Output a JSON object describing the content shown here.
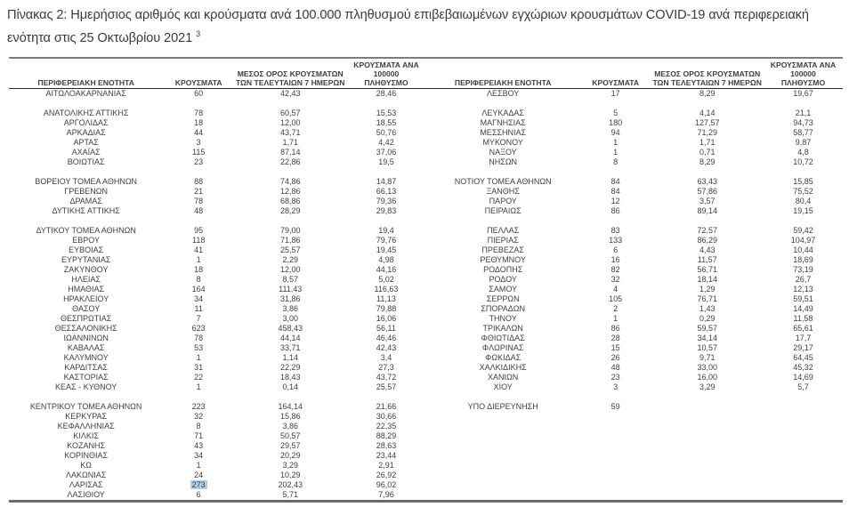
{
  "document": {
    "title_line1": "Πίνακας 2: Ημερήσιος αριθμός και κρούσματα ανά 100.000 πληθυσμού επιβεβαιωμένων εγχώριων κρουσμάτων COVID-19 ανά περιφερειακή",
    "title_line2": "ενότητα στις 25 Οκτωβρίου 2021",
    "title_footnote_marker": "3"
  },
  "table": {
    "column_headers": [
      [
        "ΠΕΡΙΦΕΡΕΙΑΚΗ ΕΝΟΤΗΤΑ"
      ],
      [
        "ΚΡΟΥΣΜΑΤΑ"
      ],
      [
        "ΜΕΣΟΣ ΟΡΟΣ ΚΡΟΥΣΜΑΤΩΝ",
        "ΤΩΝ ΤΕΛΕΥΤΑΙΩΝ 7 ΗΜΕΡΩΝ"
      ],
      [
        "ΚΡΟΥΣΜΑΤΑ ΑΝΑ 100000",
        "ΠΛΗΘΥΣΜΟ"
      ]
    ],
    "left_rows": [
      [
        "ΑΙΤΩΛΟΑΚΑΡΝΑΝΙΑΣ",
        "60",
        "42,43",
        "28,46"
      ],
      null,
      [
        "ΑΝΑΤΟΛΙΚΗΣ ΑΤΤΙΚΗΣ",
        "78",
        "60,57",
        "15,53"
      ],
      [
        "ΑΡΓΟΛΙΔΑΣ",
        "18",
        "12,00",
        "18,55"
      ],
      [
        "ΑΡΚΑΔΙΑΣ",
        "44",
        "43,71",
        "50,76"
      ],
      [
        "ΑΡΤΑΣ",
        "3",
        "1,71",
        "4,42"
      ],
      [
        "ΑΧΑΪΑΣ",
        "115",
        "87,14",
        "37,06"
      ],
      [
        "ΒΟΙΩΤΙΑΣ",
        "23",
        "22,86",
        "19,5"
      ],
      null,
      [
        "ΒΟΡΕΙΟΥ ΤΟΜΕΑ ΑΘΗΝΩΝ",
        "88",
        "74,86",
        "14,87"
      ],
      [
        "ΓΡΕΒΕΝΩΝ",
        "21",
        "12,86",
        "66,13"
      ],
      [
        "ΔΡΑΜΑΣ",
        "78",
        "68,86",
        "79,36"
      ],
      [
        "ΔΥΤΙΚΗΣ ΑΤΤΙΚΗΣ",
        "48",
        "28,29",
        "29,83"
      ],
      null,
      [
        "ΔΥΤΙΚΟΥ ΤΟΜΕΑ ΑΘΗΝΩΝ",
        "95",
        "79,00",
        "19,4"
      ],
      [
        "ΕΒΡΟΥ",
        "118",
        "71,86",
        "79,76"
      ],
      [
        "ΕΥΒΟΙΑΣ",
        "41",
        "25,57",
        "19,45"
      ],
      [
        "ΕΥΡΥΤΑΝΙΑΣ",
        "1",
        "2,29",
        "4,98"
      ],
      [
        "ΖΑΚΥΝΘΟΥ",
        "18",
        "12,00",
        "44,16"
      ],
      [
        "ΗΛΕΙΑΣ",
        "8",
        "8,57",
        "5,02"
      ],
      [
        "ΗΜΑΘΙΑΣ",
        "164",
        "111,43",
        "116,63"
      ],
      [
        "ΗΡΑΚΛΕΙΟΥ",
        "34",
        "31,86",
        "11,13"
      ],
      [
        "ΘΑΣΟΥ",
        "11",
        "3,86",
        "79,88"
      ],
      [
        "ΘΕΣΠΡΩΤΙΑΣ",
        "7",
        "3,00",
        "16,06"
      ],
      [
        "ΘΕΣΣΑΛΟΝΙΚΗΣ",
        "623",
        "458,43",
        "56,11"
      ],
      [
        "ΙΩΑΝΝΙΝΩΝ",
        "78",
        "44,14",
        "46,46"
      ],
      [
        "ΚΑΒΑΛΑΣ",
        "53",
        "33,71",
        "42,43"
      ],
      [
        "ΚΑΛΥΜΝΟΥ",
        "1",
        "1,14",
        "3,4"
      ],
      [
        "ΚΑΡΔΙΤΣΑΣ",
        "31",
        "22,29",
        "27,3"
      ],
      [
        "ΚΑΣΤΟΡΙΑΣ",
        "22",
        "18,43",
        "43,72"
      ],
      [
        "ΚΕΑΣ - ΚΥΘΝΟΥ",
        "1",
        "0,14",
        "25,57"
      ],
      null,
      [
        "ΚΕΝΤΡΙΚΟΥ ΤΟΜΕΑ ΑΘΗΝΩΝ",
        "223",
        "164,14",
        "21,66"
      ],
      [
        "ΚΕΡΚΥΡΑΣ",
        "32",
        "15,86",
        "30,66"
      ],
      [
        "ΚΕΦΑΛΛΗΝΙΑΣ",
        "8",
        "3,86",
        "22,35"
      ],
      [
        "ΚΙΛΚΙΣ",
        "71",
        "50,57",
        "88,29"
      ],
      [
        "ΚΟΖΑΝΗΣ",
        "43",
        "29,57",
        "28,63"
      ],
      [
        "ΚΟΡΙΝΘΙΑΣ",
        "34",
        "20,29",
        "23,44"
      ],
      [
        "ΚΩ",
        "1",
        "3,29",
        "2,91"
      ],
      [
        "ΛΑΚΩΝΙΑΣ",
        "24",
        "10,29",
        "26,92"
      ],
      [
        "ΛΑΡΙΣΑΣ",
        "273",
        "202,43",
        "96,02"
      ],
      [
        "ΛΑΣΙΘΙΟΥ",
        "6",
        "5,71",
        "7,96"
      ]
    ],
    "right_rows": [
      [
        "ΛΕΣΒΟΥ",
        "17",
        "8,29",
        "19,67"
      ],
      null,
      [
        "ΛΕΥΚΑΔΑΣ",
        "5",
        "4,14",
        "21,1"
      ],
      [
        "ΜΑΓΝΗΣΙΑΣ",
        "180",
        "127,57",
        "94,73"
      ],
      [
        "ΜΕΣΣΗΝΙΑΣ",
        "94",
        "71,29",
        "58,77"
      ],
      [
        "ΜΥΚΟΝΟΥ",
        "1",
        "1,71",
        "9,87"
      ],
      [
        "ΝΑΞΟΥ",
        "1",
        "0,71",
        "4,8"
      ],
      [
        "ΝΗΣΩΝ",
        "8",
        "8,29",
        "10,72"
      ],
      null,
      [
        "ΝΟΤΙΟΥ ΤΟΜΕΑ ΑΘΗΝΩΝ",
        "84",
        "63,43",
        "15,85"
      ],
      [
        "ΞΑΝΘΗΣ",
        "84",
        "57,86",
        "75,52"
      ],
      [
        "ΠΑΡΟΥ",
        "12",
        "3,57",
        "80,4"
      ],
      [
        "ΠΕΙΡΑΙΩΣ",
        "86",
        "89,14",
        "19,15"
      ],
      null,
      [
        "ΠΕΛΛΑΣ",
        "83",
        "72,57",
        "59,42"
      ],
      [
        "ΠΙΕΡΙΑΣ",
        "133",
        "86,29",
        "104,97"
      ],
      [
        "ΠΡΕΒΕΖΑΣ",
        "6",
        "4,43",
        "10,44"
      ],
      [
        "ΡΕΘΥΜΝΟΥ",
        "16",
        "11,57",
        "18,69"
      ],
      [
        "ΡΟΔΟΠΗΣ",
        "82",
        "56,71",
        "73,19"
      ],
      [
        "ΡΟΔΟΥ",
        "32",
        "18,14",
        "26,7"
      ],
      [
        "ΣΑΜΟΥ",
        "4",
        "1,29",
        "12,13"
      ],
      [
        "ΣΕΡΡΩΝ",
        "105",
        "76,71",
        "59,51"
      ],
      [
        "ΣΠΟΡΑΔΩΝ",
        "2",
        "1,43",
        "14,49"
      ],
      [
        "ΤΗΝΟΥ",
        "1",
        "0,29",
        "11,58"
      ],
      [
        "ΤΡΙΚΑΛΩΝ",
        "86",
        "59,57",
        "65,61"
      ],
      [
        "ΦΘΙΩΤΙΔΑΣ",
        "28",
        "34,14",
        "17,7"
      ],
      [
        "ΦΛΩΡΙΝΑΣ",
        "15",
        "10,57",
        "29,17"
      ],
      [
        "ΦΩΚΙΔΑΣ",
        "26",
        "9,71",
        "64,45"
      ],
      [
        "ΧΑΛΚΙΔΙΚΗΣ",
        "48",
        "33,00",
        "45,32"
      ],
      [
        "ΧΑΝΙΩΝ",
        "23",
        "16,00",
        "14,69"
      ],
      [
        "ΧΙΟΥ",
        "3",
        "3,29",
        "5,7"
      ],
      null,
      [
        "ΥΠΟ ΔΙΕΡΕΥΝΗΣΗ",
        "59",
        "",
        ""
      ],
      null,
      null,
      null,
      null,
      null,
      null,
      null,
      null,
      null
    ],
    "highlighted_cell": {
      "side": "left",
      "region": "ΛΑΡΙΣΑΣ",
      "column_index": 1,
      "value": "273",
      "highlight_color": "#aecde6"
    }
  }
}
